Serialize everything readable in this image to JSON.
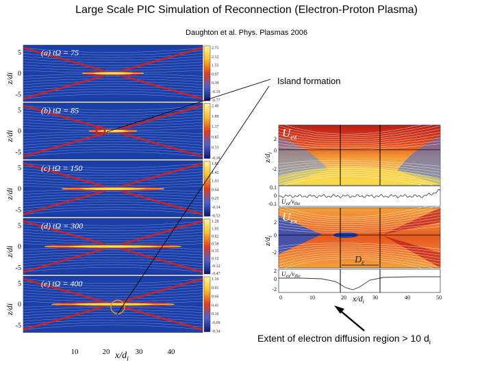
{
  "slide": {
    "title": "Large Scale PIC Simulation of Reconnection (Electron-Proton Plasma)",
    "citation": "Daughton et al.  Phys. Plasmas 2006",
    "island_label": "Island formation",
    "extent_label": "Extent of electron diffusion region > 10 d",
    "extent_subscript": "i"
  },
  "left_figure": {
    "axis_label": "z/d",
    "axis_label_sub": "i",
    "x_label": "x/d",
    "x_label_sub": "i",
    "x_ticks": [
      "10",
      "20",
      "30",
      "40"
    ],
    "panels": [
      {
        "label": "(a) tΩ  = 75",
        "yticks": [
          "5",
          "0",
          "-5"
        ],
        "colorbar": [
          "2.71",
          "2.12",
          "1.55",
          "0.97",
          "0.39",
          "-0.19",
          "-0.77"
        ]
      },
      {
        "label": "(b) tΩ  = 85",
        "yticks": [
          "5",
          "0",
          "-5"
        ],
        "colorbar": [
          "2.40",
          "1.89",
          "1.37",
          "0.85",
          "0.33",
          "-0.18"
        ]
      },
      {
        "label": "(c) tΩ  = 150",
        "yticks": [
          "5",
          "0",
          "-5"
        ],
        "colorbar": [
          "1.81",
          "1.42",
          "1.03",
          "0.64",
          "0.25",
          "-0.14",
          "-0.53"
        ]
      },
      {
        "label": "(d) tΩ  = 300",
        "yticks": [
          "5",
          "0",
          "-5"
        ],
        "colorbar": [
          "1.28",
          "1.05",
          "0.82",
          "0.58",
          "0.35",
          "0.12",
          "-0.12",
          "-0.47"
        ]
      },
      {
        "label": "(e) tΩ  = 400",
        "yticks": [
          "5",
          "0",
          "-5"
        ],
        "colorbar": [
          "1.16",
          "0.91",
          "0.66",
          "0.41",
          "0.16",
          "-0.09",
          "-0.34"
        ]
      }
    ]
  },
  "right_figure": {
    "top_panel_label": "U",
    "top_panel_sub": "ez",
    "bottom_panel_label": "U",
    "bottom_panel_sub": "ex",
    "top_yticks": [
      "2",
      "0",
      "-2"
    ],
    "top_line_yticks": [
      "0.1",
      "0",
      "-0.1"
    ],
    "top_line_label": "U",
    "top_line_label_sub": "ez",
    "top_line_label_den": "/v",
    "top_line_label_den_sub": "the",
    "bottom_yticks": [
      "2",
      "0",
      "-2"
    ],
    "bottom_line_yticks": [
      "2",
      "0",
      "-2"
    ],
    "bottom_line_label": "U",
    "bottom_line_label_sub": "ex",
    "bottom_line_label_den": "/v",
    "bottom_line_label_den_sub": "the",
    "de_label": "D",
    "de_label_sub": "e",
    "x_ticks": [
      "0",
      "10",
      "20",
      "30",
      "40",
      "50"
    ],
    "x_label": "x/d",
    "x_label_sub": "i"
  },
  "colors": {
    "bg_blue": "#1a3fa8",
    "sheet_red": "#d8201a",
    "sheet_orange": "#f08a1c",
    "sheet_yellow": "#f7e23a"
  }
}
